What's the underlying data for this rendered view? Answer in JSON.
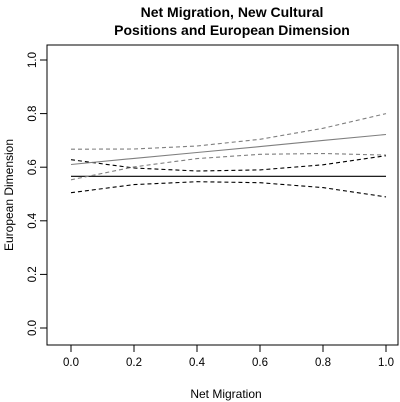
{
  "chart_data": {
    "type": "line",
    "title_lines": [
      "Net Migration, New Cultural",
      "Positions and European Dimension"
    ],
    "xlabel": "Net Migration",
    "ylabel": "European Dimension",
    "xlim": [
      0,
      1
    ],
    "ylim": [
      0,
      1
    ],
    "x_ticks": [
      0.0,
      0.2,
      0.4,
      0.6,
      0.8,
      1.0
    ],
    "x_tick_labels": [
      "0.0",
      "0.2",
      "0.4",
      "0.6",
      "0.8",
      "1.0"
    ],
    "y_ticks": [
      0.0,
      0.2,
      0.4,
      0.6,
      0.8,
      1.0
    ],
    "y_tick_labels": [
      "0.0",
      "0.2",
      "0.4",
      "0.6",
      "0.8",
      "1.0"
    ],
    "grid": false,
    "series": [
      {
        "color": "#000000",
        "dash": "solid",
        "x": [
          0.0,
          0.2,
          0.4,
          0.6,
          0.8,
          1.0
        ],
        "values": [
          0.566,
          0.566,
          0.566,
          0.566,
          0.566,
          0.566
        ]
      },
      {
        "color": "#000000",
        "dash": "dashed",
        "x": [
          0.0,
          0.2,
          0.4,
          0.6,
          0.8,
          1.0
        ],
        "values": [
          0.628,
          0.597,
          0.586,
          0.59,
          0.609,
          0.643
        ]
      },
      {
        "color": "#000000",
        "dash": "dashed",
        "x": [
          0.0,
          0.2,
          0.4,
          0.6,
          0.8,
          1.0
        ],
        "values": [
          0.505,
          0.535,
          0.546,
          0.542,
          0.524,
          0.489
        ]
      },
      {
        "color": "#7f7f7f",
        "dash": "solid",
        "x": [
          0.0,
          0.2,
          0.4,
          0.6,
          0.8,
          1.0
        ],
        "values": [
          0.61,
          0.633,
          0.655,
          0.677,
          0.7,
          0.722
        ]
      },
      {
        "color": "#7f7f7f",
        "dash": "dashed",
        "x": [
          0.0,
          0.2,
          0.4,
          0.6,
          0.8,
          1.0
        ],
        "values": [
          0.667,
          0.668,
          0.679,
          0.704,
          0.745,
          0.8
        ]
      },
      {
        "color": "#7f7f7f",
        "dash": "dashed",
        "x": [
          0.0,
          0.2,
          0.4,
          0.6,
          0.8,
          1.0
        ],
        "values": [
          0.553,
          0.601,
          0.632,
          0.648,
          0.651,
          0.645
        ]
      }
    ]
  }
}
